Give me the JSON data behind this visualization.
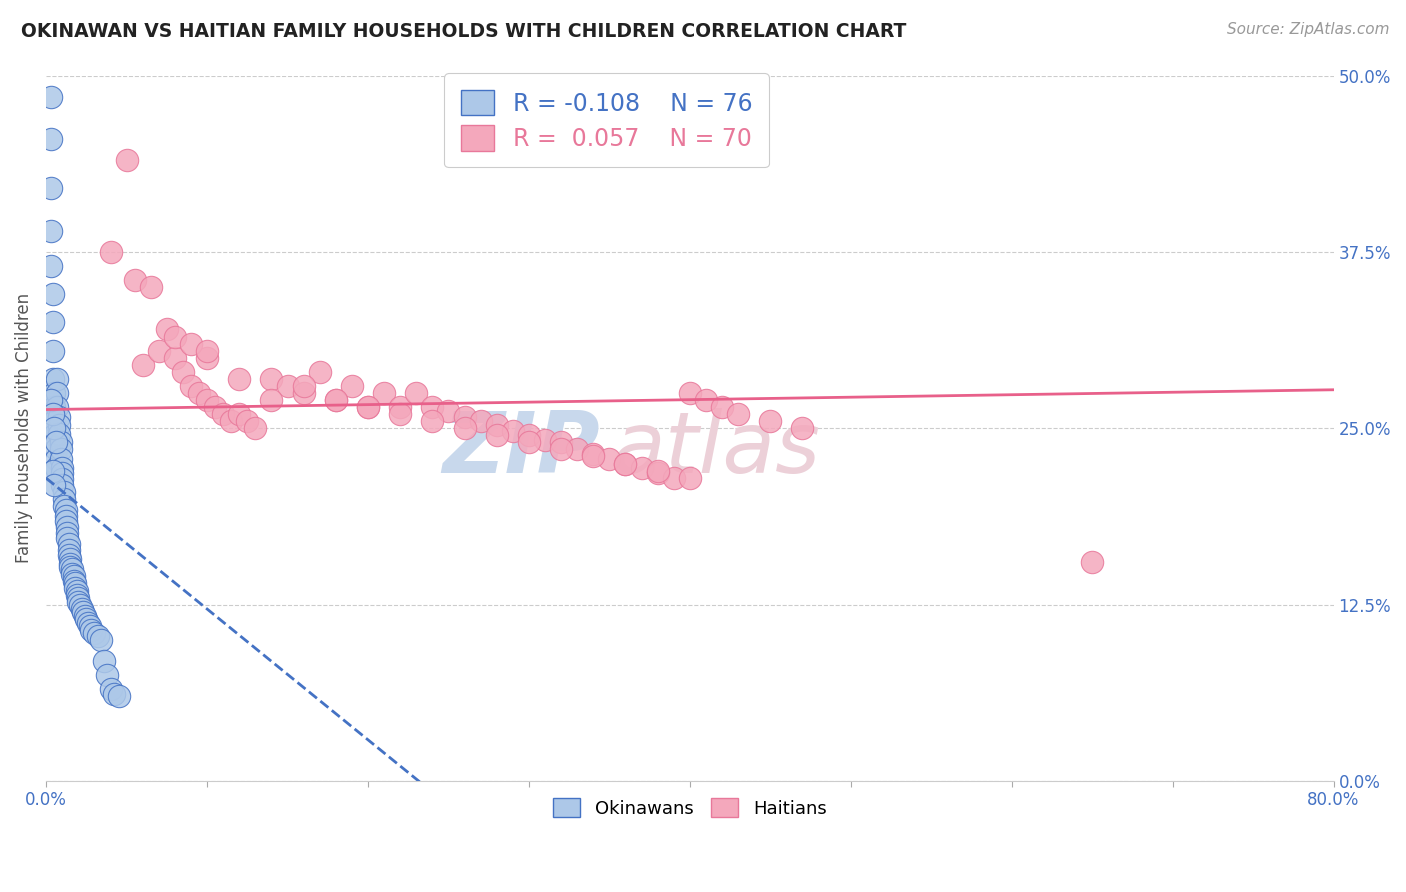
{
  "title": "OKINAWAN VS HAITIAN FAMILY HOUSEHOLDS WITH CHILDREN CORRELATION CHART",
  "source": "Source: ZipAtlas.com",
  "ylabel_label": "Family Households with Children",
  "x_tick_labels": [
    "0.0%",
    "80.0%"
  ],
  "y_ticks": [
    0.0,
    0.125,
    0.25,
    0.375,
    0.5
  ],
  "y_tick_labels": [
    "0.0%",
    "12.5%",
    "25.0%",
    "37.5%",
    "50.0%"
  ],
  "xlim": [
    0.0,
    0.8
  ],
  "ylim": [
    0.0,
    0.5
  ],
  "legend_labels": [
    "Okinawans",
    "Haitians"
  ],
  "okinawan_color": "#adc8e8",
  "haitian_color": "#f4a8bc",
  "okinawan_edge_color": "#4472c4",
  "haitian_edge_color": "#e8789a",
  "okinawan_line_color": "#4472c4",
  "haitian_line_color": "#e8608a",
  "okinawan_R": -0.108,
  "okinawan_N": 76,
  "haitian_R": 0.057,
  "haitian_N": 70,
  "background_color": "#ffffff",
  "grid_color": "#cccccc",
  "title_color": "#222222",
  "ylabel_color": "#555555",
  "ytick_color": "#4472c4",
  "source_color": "#999999",
  "watermark_zip_color": "#c8d8ec",
  "watermark_atlas_color": "#ecd0d8",
  "ok_x": [
    0.003,
    0.003,
    0.003,
    0.003,
    0.003,
    0.004,
    0.004,
    0.004,
    0.004,
    0.005,
    0.005,
    0.005,
    0.005,
    0.006,
    0.006,
    0.006,
    0.007,
    0.007,
    0.007,
    0.008,
    0.008,
    0.008,
    0.009,
    0.009,
    0.009,
    0.01,
    0.01,
    0.01,
    0.01,
    0.011,
    0.011,
    0.011,
    0.012,
    0.012,
    0.012,
    0.013,
    0.013,
    0.013,
    0.014,
    0.014,
    0.014,
    0.015,
    0.015,
    0.015,
    0.016,
    0.016,
    0.017,
    0.017,
    0.018,
    0.018,
    0.019,
    0.019,
    0.02,
    0.02,
    0.021,
    0.022,
    0.023,
    0.024,
    0.025,
    0.026,
    0.027,
    0.028,
    0.03,
    0.032,
    0.034,
    0.036,
    0.038,
    0.04,
    0.042,
    0.045,
    0.003,
    0.004,
    0.005,
    0.006,
    0.004,
    0.005
  ],
  "ok_y": [
    0.485,
    0.455,
    0.42,
    0.39,
    0.365,
    0.345,
    0.325,
    0.305,
    0.285,
    0.275,
    0.265,
    0.255,
    0.245,
    0.235,
    0.228,
    0.222,
    0.285,
    0.275,
    0.265,
    0.258,
    0.252,
    0.246,
    0.24,
    0.235,
    0.228,
    0.222,
    0.218,
    0.214,
    0.21,
    0.205,
    0.2,
    0.195,
    0.192,
    0.188,
    0.184,
    0.18,
    0.176,
    0.172,
    0.168,
    0.164,
    0.16,
    0.157,
    0.154,
    0.152,
    0.15,
    0.147,
    0.145,
    0.142,
    0.14,
    0.137,
    0.135,
    0.132,
    0.13,
    0.127,
    0.125,
    0.122,
    0.12,
    0.117,
    0.115,
    0.112,
    0.11,
    0.107,
    0.105,
    0.103,
    0.1,
    0.085,
    0.075,
    0.065,
    0.062,
    0.06,
    0.27,
    0.26,
    0.25,
    0.24,
    0.22,
    0.21
  ],
  "h_x": [
    0.04,
    0.05,
    0.055,
    0.06,
    0.065,
    0.07,
    0.075,
    0.08,
    0.085,
    0.09,
    0.095,
    0.1,
    0.105,
    0.11,
    0.115,
    0.12,
    0.125,
    0.13,
    0.14,
    0.15,
    0.16,
    0.17,
    0.18,
    0.19,
    0.2,
    0.21,
    0.22,
    0.23,
    0.24,
    0.25,
    0.26,
    0.27,
    0.28,
    0.29,
    0.3,
    0.31,
    0.32,
    0.33,
    0.34,
    0.35,
    0.36,
    0.37,
    0.38,
    0.39,
    0.4,
    0.41,
    0.42,
    0.43,
    0.45,
    0.47,
    0.1,
    0.12,
    0.14,
    0.16,
    0.18,
    0.2,
    0.22,
    0.24,
    0.26,
    0.28,
    0.3,
    0.32,
    0.34,
    0.36,
    0.38,
    0.4,
    0.65,
    0.08,
    0.09,
    0.1
  ],
  "h_y": [
    0.375,
    0.44,
    0.355,
    0.295,
    0.35,
    0.305,
    0.32,
    0.3,
    0.29,
    0.28,
    0.275,
    0.27,
    0.265,
    0.26,
    0.255,
    0.26,
    0.255,
    0.25,
    0.285,
    0.28,
    0.275,
    0.29,
    0.27,
    0.28,
    0.265,
    0.275,
    0.265,
    0.275,
    0.265,
    0.262,
    0.258,
    0.255,
    0.252,
    0.248,
    0.245,
    0.242,
    0.24,
    0.235,
    0.232,
    0.228,
    0.225,
    0.222,
    0.218,
    0.215,
    0.275,
    0.27,
    0.265,
    0.26,
    0.255,
    0.25,
    0.3,
    0.285,
    0.27,
    0.28,
    0.27,
    0.265,
    0.26,
    0.255,
    0.25,
    0.245,
    0.24,
    0.235,
    0.23,
    0.225,
    0.22,
    0.215,
    0.155,
    0.315,
    0.31,
    0.305
  ]
}
